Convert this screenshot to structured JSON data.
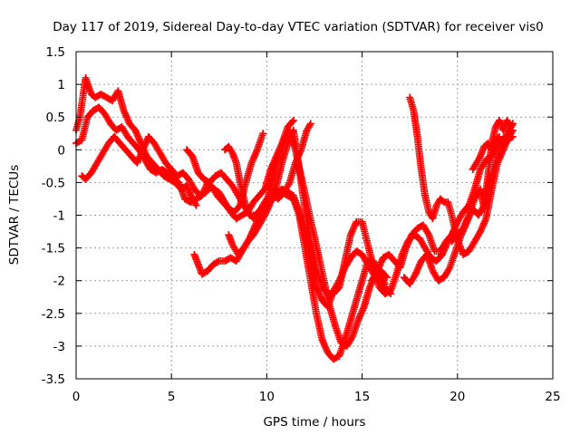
{
  "chart_data": {
    "type": "scatter",
    "title": "Day 117 of 2019, Sidereal Day-to-day VTEC variation (SDTVAR) for receiver vis0",
    "xlabel": "GPS time / hours",
    "ylabel": "SDTVAR / TECUs",
    "xlim": [
      0,
      25
    ],
    "ylim": [
      -3.5,
      1.5
    ],
    "xticks": [
      "0",
      "5",
      "10",
      "15",
      "20",
      "25"
    ],
    "yticks": [
      "1.5",
      "1",
      "0.5",
      "0",
      "-0.5",
      "-1",
      "-1.5",
      "-2",
      "-2.5",
      "-3",
      "-3.5"
    ],
    "grid": "dotted",
    "marker": "+",
    "color": "#ff0000",
    "series": [
      {
        "x": [
          0.0,
          0.2,
          0.5,
          0.8,
          1.0,
          1.3,
          1.6,
          1.9,
          2.2,
          2.5,
          2.8,
          3.1,
          3.4,
          3.7,
          4.0,
          4.3,
          4.6,
          4.9,
          5.2,
          5.5,
          5.8,
          6.1,
          6.3
        ],
        "y": [
          0.3,
          0.5,
          1.1,
          0.85,
          0.8,
          0.85,
          0.8,
          0.75,
          0.9,
          0.6,
          0.4,
          0.3,
          0.1,
          -0.1,
          -0.2,
          -0.3,
          -0.4,
          -0.45,
          -0.5,
          -0.6,
          -0.55,
          -0.75,
          -0.85
        ]
      },
      {
        "x": [
          0.0,
          0.3,
          0.6,
          0.9,
          1.2,
          1.5,
          1.8,
          2.1,
          2.4,
          2.7,
          3.0,
          3.3,
          3.6,
          3.9,
          4.2,
          4.5,
          4.8,
          5.1,
          5.4,
          5.7,
          6.0,
          6.3,
          6.6,
          6.9,
          7.2,
          7.5,
          7.8,
          8.1,
          8.4,
          8.7,
          9.0,
          9.3,
          9.6,
          9.9,
          10.2,
          10.5,
          10.8,
          11.1,
          11.4
        ],
        "y": [
          0.1,
          0.15,
          0.5,
          0.6,
          0.65,
          0.55,
          0.4,
          0.3,
          0.35,
          0.2,
          0.1,
          0.0,
          -0.15,
          -0.3,
          -0.35,
          -0.3,
          -0.35,
          -0.45,
          -0.5,
          -0.75,
          -0.8,
          -0.75,
          -0.7,
          -0.5,
          -0.6,
          -0.65,
          -0.8,
          -0.95,
          -1.05,
          -1.0,
          -0.95,
          -0.8,
          -0.7,
          -0.6,
          -0.3,
          -0.1,
          0.1,
          0.35,
          0.45
        ]
      },
      {
        "x": [
          0.3,
          0.5,
          0.8,
          1.1,
          1.4,
          1.7,
          2.0,
          2.3,
          2.6,
          2.9,
          3.2,
          3.5,
          3.8,
          4.1,
          4.4,
          4.7,
          5.0,
          5.3,
          5.6,
          5.9,
          6.2,
          6.5,
          6.8,
          7.1,
          7.4,
          7.7,
          8.0,
          8.3,
          8.6,
          8.9,
          9.2,
          9.5,
          9.8
        ],
        "y": [
          -0.4,
          -0.45,
          -0.35,
          -0.2,
          -0.05,
          0.1,
          0.2,
          0.1,
          0.0,
          -0.1,
          -0.2,
          0.0,
          0.2,
          0.1,
          -0.05,
          -0.2,
          -0.3,
          -0.4,
          -0.35,
          -0.45,
          -0.6,
          -0.7,
          -0.65,
          -0.55,
          -0.7,
          -0.8,
          -0.9,
          -0.95,
          -0.85,
          -0.5,
          -0.2,
          0.0,
          0.25
        ]
      },
      {
        "x": [
          5.8,
          6.1,
          6.4,
          6.7,
          7.0,
          7.3,
          7.6,
          7.9,
          8.2,
          8.5,
          8.8,
          9.1,
          9.4,
          9.7,
          10.0,
          10.3,
          10.6,
          10.9,
          11.2,
          11.5,
          11.8,
          12.1,
          12.3
        ],
        "y": [
          0.0,
          -0.1,
          -0.35,
          -0.45,
          -0.5,
          -0.4,
          -0.35,
          -0.45,
          -0.55,
          -0.7,
          -0.85,
          -1.0,
          -1.0,
          -0.9,
          -0.75,
          -0.7,
          -0.75,
          -0.65,
          -0.5,
          -0.2,
          0.0,
          0.3,
          0.4
        ]
      },
      {
        "x": [
          7.8,
          8.0,
          8.2,
          8.4,
          8.6,
          8.8,
          9.0,
          9.3,
          9.6,
          9.9,
          10.2,
          10.5,
          10.8,
          11.1,
          11.4,
          11.7,
          12.0,
          12.3,
          12.6,
          12.9,
          13.2,
          13.5,
          13.8,
          14.1,
          14.4,
          14.7,
          15.0,
          15.3,
          15.6,
          15.9,
          16.2
        ],
        "y": [
          0.0,
          0.05,
          -0.05,
          -0.2,
          -0.5,
          -0.75,
          -0.95,
          -1.05,
          -0.95,
          -0.8,
          -0.7,
          -0.7,
          -0.65,
          -0.7,
          -0.75,
          -1.0,
          -1.5,
          -2.0,
          -2.5,
          -2.9,
          -3.1,
          -3.2,
          -3.15,
          -2.9,
          -2.6,
          -2.3,
          -2.0,
          -1.7,
          -1.7,
          -1.9,
          -2.05
        ]
      },
      {
        "x": [
          6.2,
          6.4,
          6.6,
          6.9,
          7.2,
          7.5,
          7.8,
          8.1,
          8.4,
          8.7,
          9.0,
          9.3,
          9.6,
          9.9,
          10.2,
          10.5,
          10.8,
          11.1,
          11.4,
          11.7,
          12.0,
          12.3,
          12.6,
          12.9,
          13.2,
          13.5,
          13.8,
          14.1,
          14.4,
          14.7,
          15.0,
          15.3,
          15.6,
          15.9,
          16.2,
          16.5
        ],
        "y": [
          -1.6,
          -1.75,
          -1.9,
          -1.85,
          -1.75,
          -1.7,
          -1.7,
          -1.65,
          -1.7,
          -1.55,
          -1.4,
          -1.3,
          -1.15,
          -1.0,
          -0.8,
          -0.65,
          -0.6,
          -0.65,
          -0.7,
          -0.95,
          -1.3,
          -1.7,
          -2.1,
          -2.3,
          -2.4,
          -2.15,
          -2.0,
          -1.8,
          -1.65,
          -1.55,
          -1.6,
          -1.75,
          -1.9,
          -2.0,
          -2.1,
          -2.2
        ]
      },
      {
        "x": [
          10.2,
          10.5,
          10.8,
          11.1,
          11.4,
          11.7,
          12.0,
          12.3,
          12.6,
          12.9,
          13.2,
          13.5,
          13.8,
          14.1,
          14.4,
          14.7,
          15.0,
          15.3,
          15.6,
          15.9,
          16.2,
          16.5,
          16.8,
          17.1,
          17.4,
          17.7,
          18.0,
          18.3,
          18.6,
          18.9,
          19.2,
          19.5,
          19.8
        ],
        "y": [
          -0.8,
          -0.55,
          -0.2,
          0.1,
          0.3,
          -0.3,
          -0.9,
          -1.4,
          -1.8,
          -2.1,
          -2.2,
          -2.2,
          -2.1,
          -1.7,
          -1.3,
          -1.1,
          -1.1,
          -1.45,
          -1.8,
          -2.1,
          -2.2,
          -2.15,
          -1.9,
          -1.6,
          -1.4,
          -1.3,
          -1.35,
          -1.5,
          -1.65,
          -1.7,
          -1.6,
          -1.4,
          -1.25
        ]
      },
      {
        "x": [
          8.0,
          8.2,
          8.5,
          8.8,
          9.1,
          9.4,
          9.7,
          10.0,
          10.3,
          10.6,
          10.9,
          11.2,
          11.5,
          11.8,
          12.1,
          12.4,
          12.7,
          13.0,
          13.3,
          13.6,
          13.9,
          14.2,
          14.5,
          14.8,
          15.1,
          15.4,
          15.7,
          16.0,
          16.3
        ],
        "y": [
          -1.3,
          -1.45,
          -1.6,
          -1.5,
          -1.35,
          -1.15,
          -1.0,
          -0.8,
          -0.45,
          -0.15,
          0.15,
          0.3,
          0.0,
          -0.4,
          -0.8,
          -1.2,
          -1.6,
          -2.0,
          -2.4,
          -2.7,
          -2.95,
          -3.0,
          -2.85,
          -2.6,
          -2.4,
          -2.1,
          -1.9,
          -1.85,
          -1.95
        ]
      },
      {
        "x": [
          15.5,
          15.8,
          16.1,
          16.4,
          16.7,
          17.0,
          17.3,
          17.6,
          17.9,
          18.2,
          18.5,
          18.8,
          19.1,
          19.4,
          19.7,
          20.0,
          20.3,
          20.6,
          20.9,
          21.2,
          21.5,
          21.8,
          22.1,
          22.4,
          22.7,
          22.9
        ],
        "y": [
          -2.0,
          -1.85,
          -1.65,
          -1.6,
          -1.7,
          -1.8,
          -1.5,
          -1.3,
          -1.2,
          -1.15,
          -1.3,
          -1.55,
          -1.55,
          -1.4,
          -1.3,
          -1.1,
          -0.95,
          -0.85,
          -0.6,
          -0.3,
          -0.15,
          -0.1,
          0.05,
          0.15,
          0.3,
          0.4
        ]
      },
      {
        "x": [
          17.5,
          17.7,
          17.9,
          18.1,
          18.3,
          18.5,
          18.7,
          18.9,
          19.1,
          19.3,
          19.5,
          19.7,
          19.9,
          20.1,
          20.3,
          20.6,
          20.9,
          21.2,
          21.5,
          21.8,
          22.1,
          22.4,
          22.7,
          22.9
        ],
        "y": [
          0.8,
          0.6,
          0.2,
          -0.3,
          -0.7,
          -0.95,
          -1.05,
          -0.85,
          -0.75,
          -0.8,
          -0.8,
          -1.0,
          -1.25,
          -1.45,
          -1.6,
          -1.55,
          -1.4,
          -1.25,
          -1.05,
          -0.6,
          -0.2,
          0.0,
          0.2,
          0.3
        ]
      },
      {
        "x": [
          17.2,
          17.5,
          17.8,
          18.1,
          18.4,
          18.7,
          19.0,
          19.3,
          19.6,
          19.9,
          20.2,
          20.5,
          20.8,
          21.1,
          21.4,
          21.7,
          22.0,
          22.3,
          22.6,
          22.9
        ],
        "y": [
          -1.95,
          -2.05,
          -1.9,
          -1.7,
          -1.6,
          -1.85,
          -2.0,
          -1.95,
          -1.8,
          -1.55,
          -1.3,
          -1.1,
          -0.9,
          -1.0,
          -0.85,
          -0.45,
          -0.2,
          0.0,
          0.15,
          0.2
        ]
      },
      {
        "x": [
          19.7,
          20.0,
          20.3,
          20.6,
          20.9,
          21.2,
          21.4,
          21.6,
          21.8,
          22.0,
          22.2,
          22.4,
          22.6,
          22.8,
          22.9
        ],
        "y": [
          -1.4,
          -1.3,
          -1.2,
          -1.0,
          -0.75,
          -0.6,
          -0.9,
          -0.4,
          0.1,
          0.35,
          0.45,
          0.3,
          0.45,
          0.35,
          0.4
        ]
      },
      {
        "x": [
          20.8,
          21.0,
          21.2,
          21.4,
          21.6,
          21.8,
          22.0,
          22.2
        ],
        "y": [
          -0.3,
          -0.2,
          -0.1,
          0.05,
          0.1,
          0.0,
          0.15,
          0.2
        ]
      }
    ]
  }
}
